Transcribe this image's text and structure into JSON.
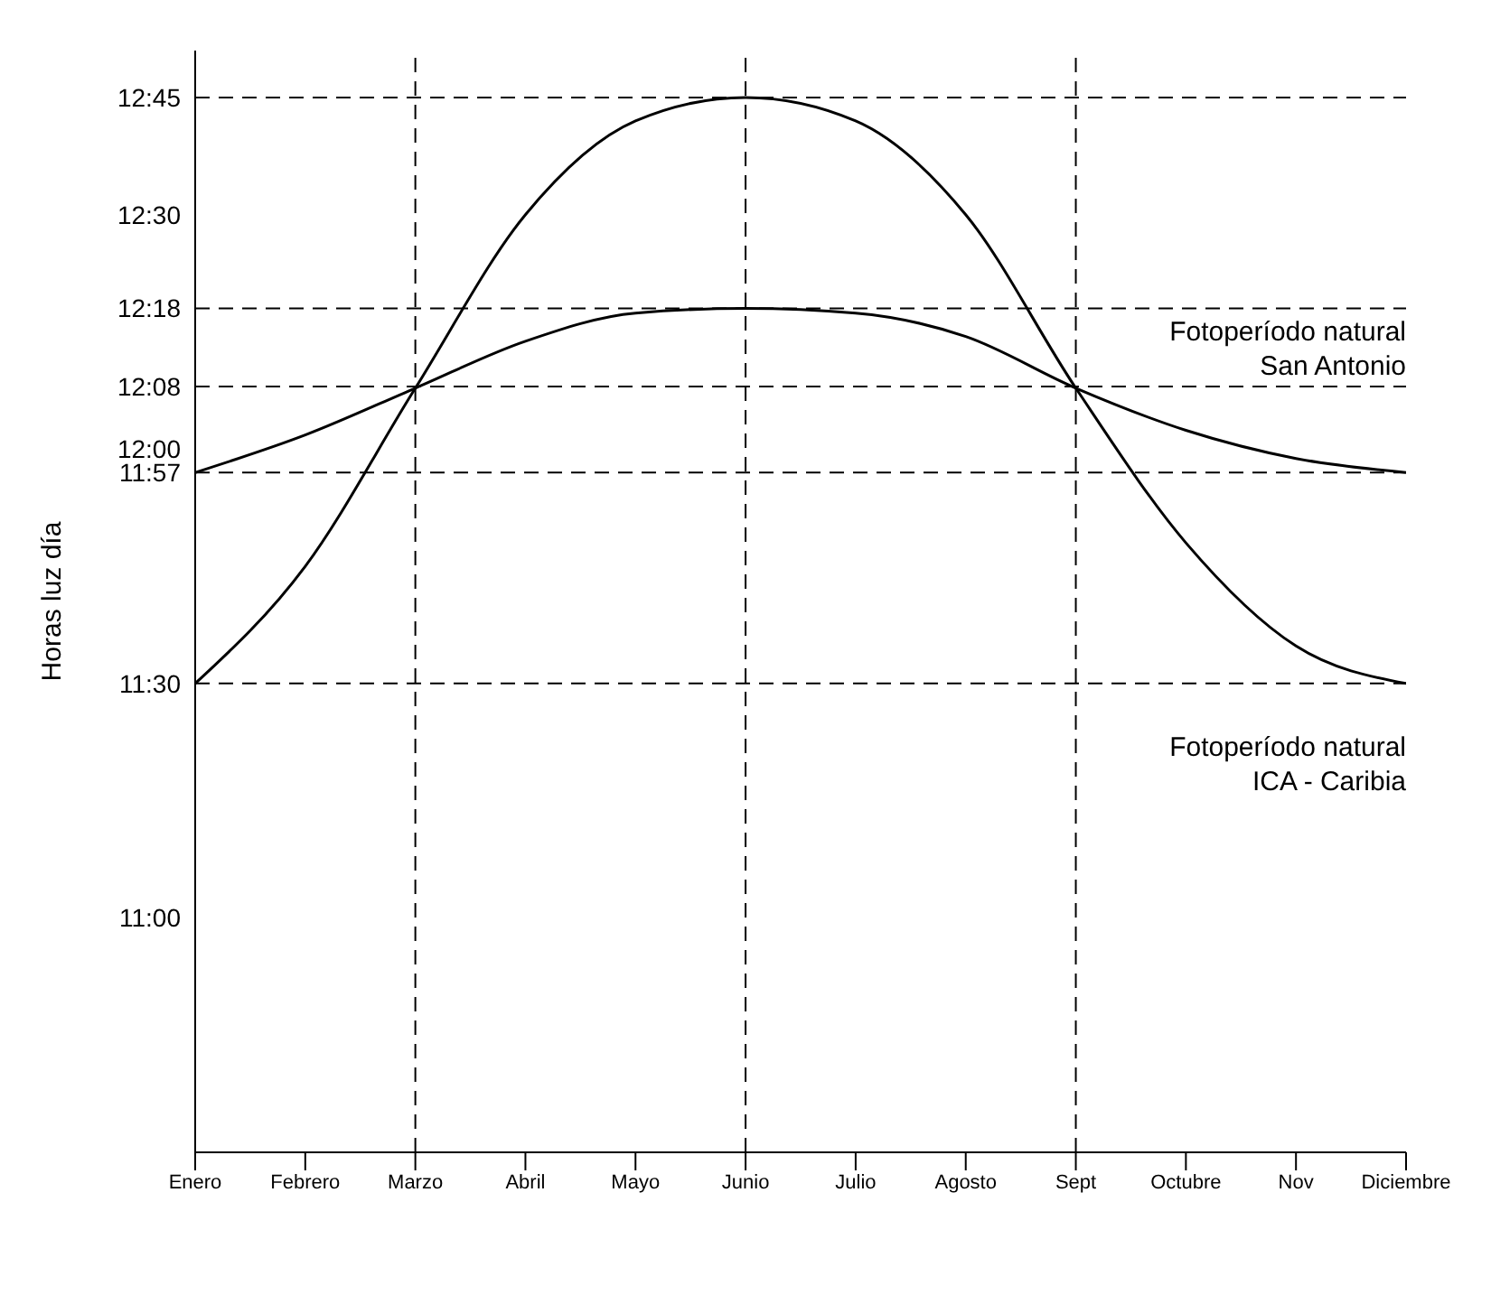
{
  "chart_data": {
    "type": "line",
    "ylabel": "Horas luz día",
    "categories": [
      "Enero",
      "Febrero",
      "Marzo",
      "Abril",
      "Mayo",
      "Junio",
      "Julio",
      "Agosto",
      "Sept",
      "Octubre",
      "Nov",
      "Diciembre"
    ],
    "series": [
      {
        "name": "Fotoperíodo natural San Antonio",
        "color": "#000000",
        "values": [
          11.95,
          12.03,
          12.13,
          12.23,
          12.29,
          12.3,
          12.29,
          12.24,
          12.13,
          12.04,
          11.98,
          11.95
        ]
      },
      {
        "name": "Fotoperíodo natural ICA - Caribia",
        "color": "#000000",
        "values": [
          11.5,
          11.75,
          12.13,
          12.5,
          12.7,
          12.75,
          12.7,
          12.5,
          12.13,
          11.8,
          11.58,
          11.5
        ]
      }
    ],
    "ylim": [
      10.5,
      12.85
    ],
    "yticks": [
      {
        "value": 11,
        "label": "11:00"
      },
      {
        "value": 11.5,
        "label": "11:30"
      },
      {
        "value": 11.95,
        "label": "11:57"
      },
      {
        "value": 12,
        "label": "12:00"
      },
      {
        "value": 12.1333,
        "label": "12:08"
      },
      {
        "value": 12.3,
        "label": "12:18"
      },
      {
        "value": 12.5,
        "label": "12:30"
      },
      {
        "value": 12.75,
        "label": "12:45"
      }
    ],
    "ref_lines": [
      {
        "axis": "y",
        "value": 12.75,
        "line_style": "dashed"
      },
      {
        "axis": "y",
        "value": 12.3,
        "line_style": "dashed"
      },
      {
        "axis": "y",
        "value": 12.1333,
        "line_style": "dashed"
      },
      {
        "axis": "y",
        "value": 11.95,
        "line_style": "dashed"
      },
      {
        "axis": "y",
        "value": 11.5,
        "line_style": "dashed"
      },
      {
        "axis": "x",
        "value": "Marzo",
        "line_style": "dashed"
      },
      {
        "axis": "x",
        "value": "Junio",
        "line_style": "dashed"
      },
      {
        "axis": "x",
        "value": "Sept",
        "line_style": "dashed"
      }
    ],
    "grid": false,
    "legend": false,
    "marker": "none",
    "line_style": "solid"
  }
}
